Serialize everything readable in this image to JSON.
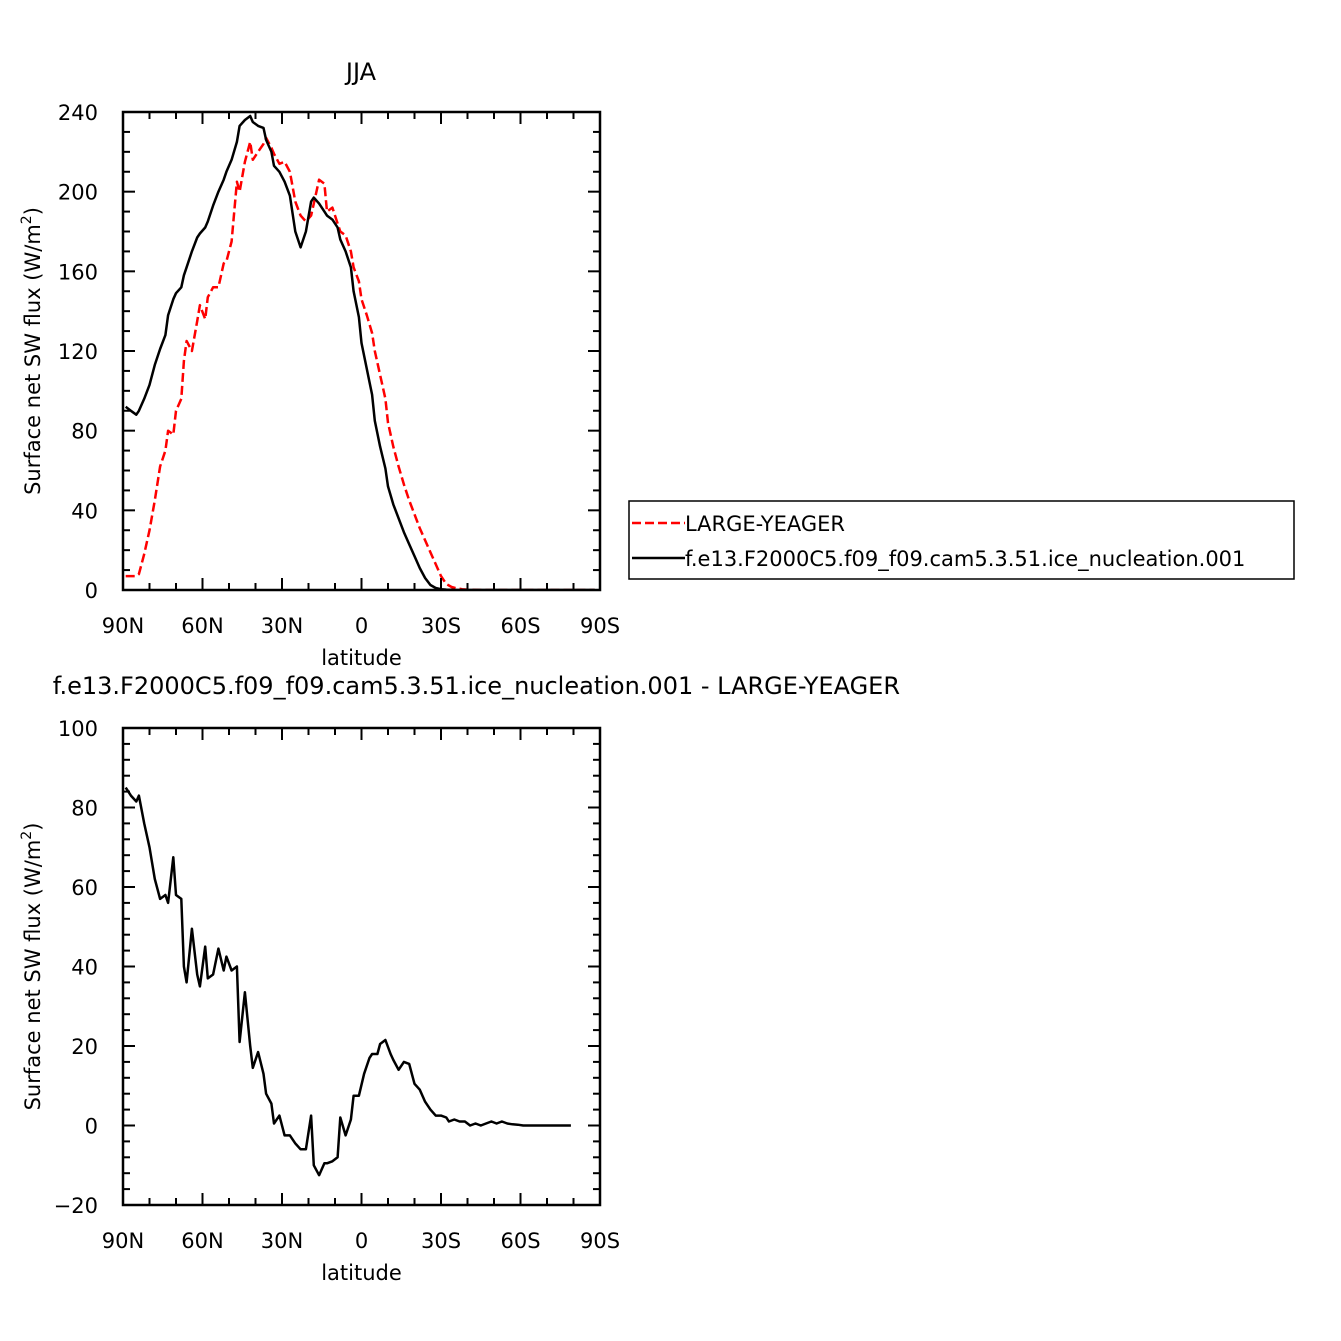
{
  "chart_data": [
    {
      "type": "line",
      "title": "JJA",
      "xlabel": "latitude",
      "ylabel": "Surface net SW flux (W/m",
      "ylabel_sup": "2",
      "ylabel_close": ")",
      "xlim": [
        90,
        -90
      ],
      "ylim": [
        0,
        240
      ],
      "xticks": [
        90,
        60,
        30,
        0,
        -30,
        -60,
        -90
      ],
      "xtick_labels": [
        "90N",
        "60N",
        "30N",
        "0",
        "30S",
        "60S",
        "90S"
      ],
      "yticks": [
        0,
        40,
        80,
        120,
        160,
        200,
        240
      ],
      "ytick_labels": [
        "0",
        "40",
        "80",
        "120",
        "160",
        "200",
        "240"
      ],
      "legend_position": "right",
      "series": [
        {
          "name": "LARGE-YEAGER",
          "color": "#ff0000",
          "dash": true,
          "x": [
            89,
            87,
            85,
            84,
            82,
            80,
            78,
            76,
            74,
            73,
            71,
            70,
            68,
            67,
            66,
            64,
            62,
            61,
            59,
            58,
            56,
            54,
            52,
            51,
            49,
            47,
            46,
            44,
            42,
            41,
            39,
            37,
            36,
            34,
            33,
            31,
            29,
            27,
            25,
            23,
            21,
            19,
            18,
            16,
            14,
            13,
            11,
            9,
            8,
            6,
            4,
            3,
            1,
            0,
            -2,
            -4,
            -5,
            -7,
            -9,
            -10,
            -12,
            -14,
            -16,
            -18,
            -20,
            -22,
            -24,
            -26,
            -28,
            -30,
            -32,
            -34,
            -36,
            -38,
            -40,
            -42,
            -44,
            -46,
            -48,
            -50,
            -52,
            -54,
            -56,
            -58,
            -60,
            -62,
            -64,
            -66,
            -68,
            -70,
            -72,
            -74,
            -76,
            -78,
            -80,
            -82,
            -84,
            -86,
            -88
          ],
          "y": [
            7,
            7,
            7,
            8,
            18,
            30,
            45,
            62,
            70,
            80,
            78,
            90,
            96,
            115,
            125,
            120,
            135,
            143,
            136,
            147,
            152,
            152,
            164,
            165,
            175,
            205,
            200,
            215,
            225,
            216,
            220,
            224,
            227,
            222,
            219,
            214,
            215,
            210,
            195,
            188,
            185,
            188,
            194,
            206,
            204,
            190,
            192,
            184,
            180,
            178,
            170,
            162,
            155,
            146,
            138,
            129,
            120,
            108,
            96,
            84,
            72,
            62,
            53,
            45,
            38,
            31,
            25,
            19,
            13,
            7,
            3,
            1.5,
            0.8,
            0.4,
            0.2,
            0.1,
            0.05,
            0,
            0,
            0,
            0,
            0,
            0,
            0,
            0,
            0,
            0,
            0,
            0,
            0,
            0,
            0,
            0,
            0,
            0,
            0,
            0,
            0,
            0
          ]
        },
        {
          "name": "f.e13.F2000C5.f09_f09.cam5.3.51.ice_nucleation.001",
          "color": "#000000",
          "dash": false,
          "x": [
            89,
            87,
            85,
            84,
            82,
            80,
            78,
            76,
            74,
            73,
            71,
            70,
            68,
            67,
            66,
            64,
            62,
            61,
            59,
            58,
            56,
            54,
            52,
            51,
            49,
            47,
            46,
            44,
            42,
            41,
            39,
            37,
            36,
            34,
            33,
            31,
            29,
            27,
            25,
            23,
            21,
            19,
            18,
            16,
            14,
            13,
            11,
            9,
            8,
            6,
            4,
            3,
            1,
            0,
            -2,
            -4,
            -5,
            -7,
            -9,
            -10,
            -12,
            -14,
            -16,
            -18,
            -20,
            -22,
            -24,
            -26,
            -28,
            -30,
            -32,
            -34,
            -36,
            -38,
            -40,
            -42,
            -44,
            -46,
            -48,
            -50,
            -52,
            -54,
            -56,
            -58,
            -60,
            -62,
            -64,
            -66,
            -68,
            -70,
            -72,
            -74,
            -76,
            -78,
            -80,
            -82,
            -84,
            -86,
            -88
          ],
          "y": [
            92,
            90,
            88,
            90,
            96,
            103,
            113,
            121,
            128,
            138,
            146,
            149,
            152,
            158,
            162,
            170,
            177,
            179,
            182,
            185,
            193,
            200,
            206,
            210,
            216,
            225,
            233,
            236,
            238,
            235,
            233,
            232,
            226,
            220,
            213,
            210,
            205,
            198,
            180,
            172,
            180,
            195,
            197,
            194,
            190,
            188,
            186,
            182,
            176,
            170,
            162,
            150,
            137,
            124,
            111,
            98,
            85,
            72,
            61,
            52,
            43,
            36,
            29,
            23,
            17,
            11,
            6,
            2.5,
            1,
            0.4,
            0.2,
            0.1,
            0,
            0,
            0,
            0,
            0,
            0,
            0,
            0,
            0,
            0,
            0,
            0,
            0,
            0,
            0,
            0,
            0,
            0,
            0,
            0,
            0,
            0,
            0,
            0,
            0,
            0,
            0
          ]
        }
      ]
    },
    {
      "type": "line",
      "title": "f.e13.F2000C5.f09_f09.cam5.3.51.ice_nucleation.001 - LARGE-YEAGER",
      "xlabel": "latitude",
      "ylabel": "Surface net SW flux (W/m",
      "ylabel_sup": "2",
      "ylabel_close": ")",
      "xlim": [
        90,
        -90
      ],
      "ylim": [
        -20,
        100
      ],
      "xticks": [
        90,
        60,
        30,
        0,
        -30,
        -60,
        -90
      ],
      "xtick_labels": [
        "90N",
        "60N",
        "30N",
        "0",
        "30S",
        "60S",
        "90S"
      ],
      "yticks": [
        -20,
        0,
        20,
        40,
        60,
        80,
        100
      ],
      "ytick_labels": [
        "−20",
        "0",
        "20",
        "40",
        "60",
        "80",
        "100"
      ],
      "series": [
        {
          "color": "#000000",
          "dash": false,
          "x": [
            89,
            87,
            85,
            84,
            82,
            80,
            78,
            76,
            74,
            73,
            71,
            70,
            68,
            67,
            66,
            64,
            62,
            61,
            59,
            58,
            56,
            54,
            52,
            51,
            49,
            47,
            46,
            44,
            42,
            41,
            39,
            37,
            36,
            34,
            33,
            31,
            29,
            27,
            25,
            23,
            21,
            19,
            18,
            16,
            14,
            13,
            11,
            9,
            8,
            6,
            4,
            3,
            1,
            -1,
            -3,
            -4,
            -6,
            -7,
            -9,
            -11,
            -12,
            -14,
            -16,
            -18,
            -20,
            -22,
            -24,
            -26,
            -28,
            -30,
            -32,
            -33,
            -35,
            -37,
            -39,
            -41,
            -43,
            -45,
            -47,
            -49,
            -51,
            -53,
            -55,
            -57,
            -59,
            -61,
            -63,
            -65,
            -67,
            -69,
            -71,
            -73,
            -75,
            -77,
            -79
          ],
          "y": [
            85,
            83,
            81.5,
            83,
            76,
            70,
            62,
            57,
            58,
            56,
            67.5,
            58,
            57,
            40,
            36,
            49.5,
            38,
            35,
            45,
            37,
            38,
            44.5,
            39,
            42.5,
            39,
            40,
            21,
            33.5,
            20,
            14.5,
            18.5,
            13,
            8,
            5.5,
            0.5,
            2.5,
            -2.5,
            -2.5,
            -4.5,
            -6,
            -6,
            2.5,
            -10,
            -12.5,
            -9.5,
            -9.5,
            -9,
            -8,
            2,
            -2.5,
            1.5,
            7.5,
            7.5,
            13,
            17,
            18,
            18,
            20.5,
            21.5,
            18,
            16.5,
            14,
            16,
            15.5,
            10.5,
            9,
            6,
            4,
            2.5,
            2.5,
            2,
            1,
            1.5,
            1,
            1,
            0,
            0.5,
            0,
            0.5,
            1,
            0.5,
            1,
            0.5,
            0.3,
            0.2,
            0,
            0,
            0,
            0,
            0,
            0,
            0,
            0,
            0,
            0
          ]
        }
      ]
    }
  ]
}
